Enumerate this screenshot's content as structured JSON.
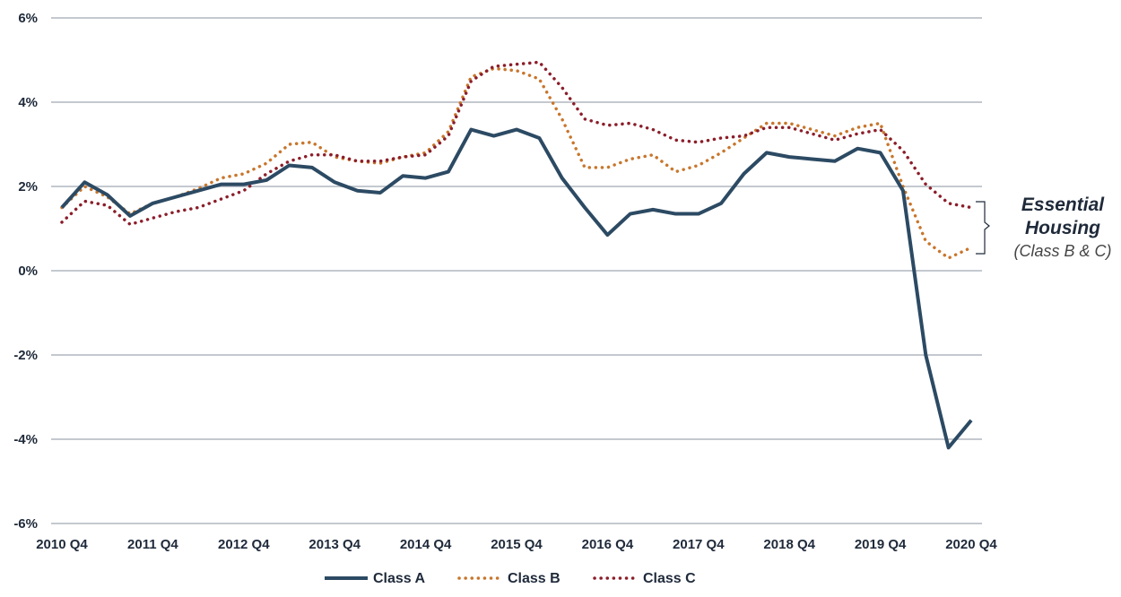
{
  "chart_data": {
    "type": "line",
    "x_labels": [
      "2010 Q4",
      "2011 Q4",
      "2012 Q4",
      "2013 Q4",
      "2014 Q4",
      "2015 Q4",
      "2016 Q4",
      "2017 Q4",
      "2018 Q4",
      "2019 Q4",
      "2020 Q4"
    ],
    "y_ticks": [
      "6%",
      "4%",
      "2%",
      "0%",
      "-2%",
      "-4%",
      "-6%"
    ],
    "ylim": [
      -6,
      6
    ],
    "grid": true,
    "legend_position": "bottom",
    "series": [
      {
        "name": "Class A",
        "style": "solid",
        "color": "#2c4a63",
        "values": [
          1.5,
          2.1,
          1.8,
          1.3,
          1.6,
          1.75,
          1.9,
          2.05,
          2.05,
          2.15,
          2.5,
          2.45,
          2.1,
          1.9,
          1.85,
          2.25,
          2.2,
          2.35,
          3.35,
          3.2,
          3.35,
          3.15,
          2.2,
          1.5,
          0.85,
          1.35,
          1.45,
          1.35,
          1.35,
          1.6,
          2.3,
          2.8,
          2.7,
          2.65,
          2.6,
          2.9,
          2.8,
          1.9,
          -2.0,
          -4.2,
          -3.55
        ]
      },
      {
        "name": "Class B",
        "style": "dotted",
        "color": "#c8762c",
        "values": [
          1.5,
          2.0,
          1.75,
          1.35,
          1.6,
          1.75,
          1.95,
          2.2,
          2.3,
          2.55,
          3.0,
          3.05,
          2.7,
          2.6,
          2.55,
          2.7,
          2.8,
          3.3,
          4.6,
          4.8,
          4.75,
          4.55,
          3.6,
          2.45,
          2.45,
          2.65,
          2.75,
          2.35,
          2.5,
          2.8,
          3.15,
          3.5,
          3.5,
          3.35,
          3.2,
          3.4,
          3.5,
          2.0,
          0.7,
          0.3,
          0.55
        ]
      },
      {
        "name": "Class C",
        "style": "dotted",
        "color": "#8b1e2a",
        "values": [
          1.15,
          1.65,
          1.55,
          1.1,
          1.25,
          1.4,
          1.5,
          1.7,
          1.9,
          2.3,
          2.6,
          2.75,
          2.75,
          2.6,
          2.6,
          2.7,
          2.75,
          3.2,
          4.5,
          4.85,
          4.9,
          4.95,
          4.35,
          3.6,
          3.45,
          3.5,
          3.35,
          3.1,
          3.05,
          3.15,
          3.2,
          3.4,
          3.4,
          3.25,
          3.1,
          3.25,
          3.35,
          2.85,
          2.05,
          1.6,
          1.5
        ]
      }
    ],
    "annotation": {
      "title_line1": "Essential",
      "title_line2": "Housing",
      "subtitle": "(Class B & C)"
    }
  },
  "style": {
    "grid_color": "#c4c9cf",
    "text_color": "#1f2a3a"
  }
}
